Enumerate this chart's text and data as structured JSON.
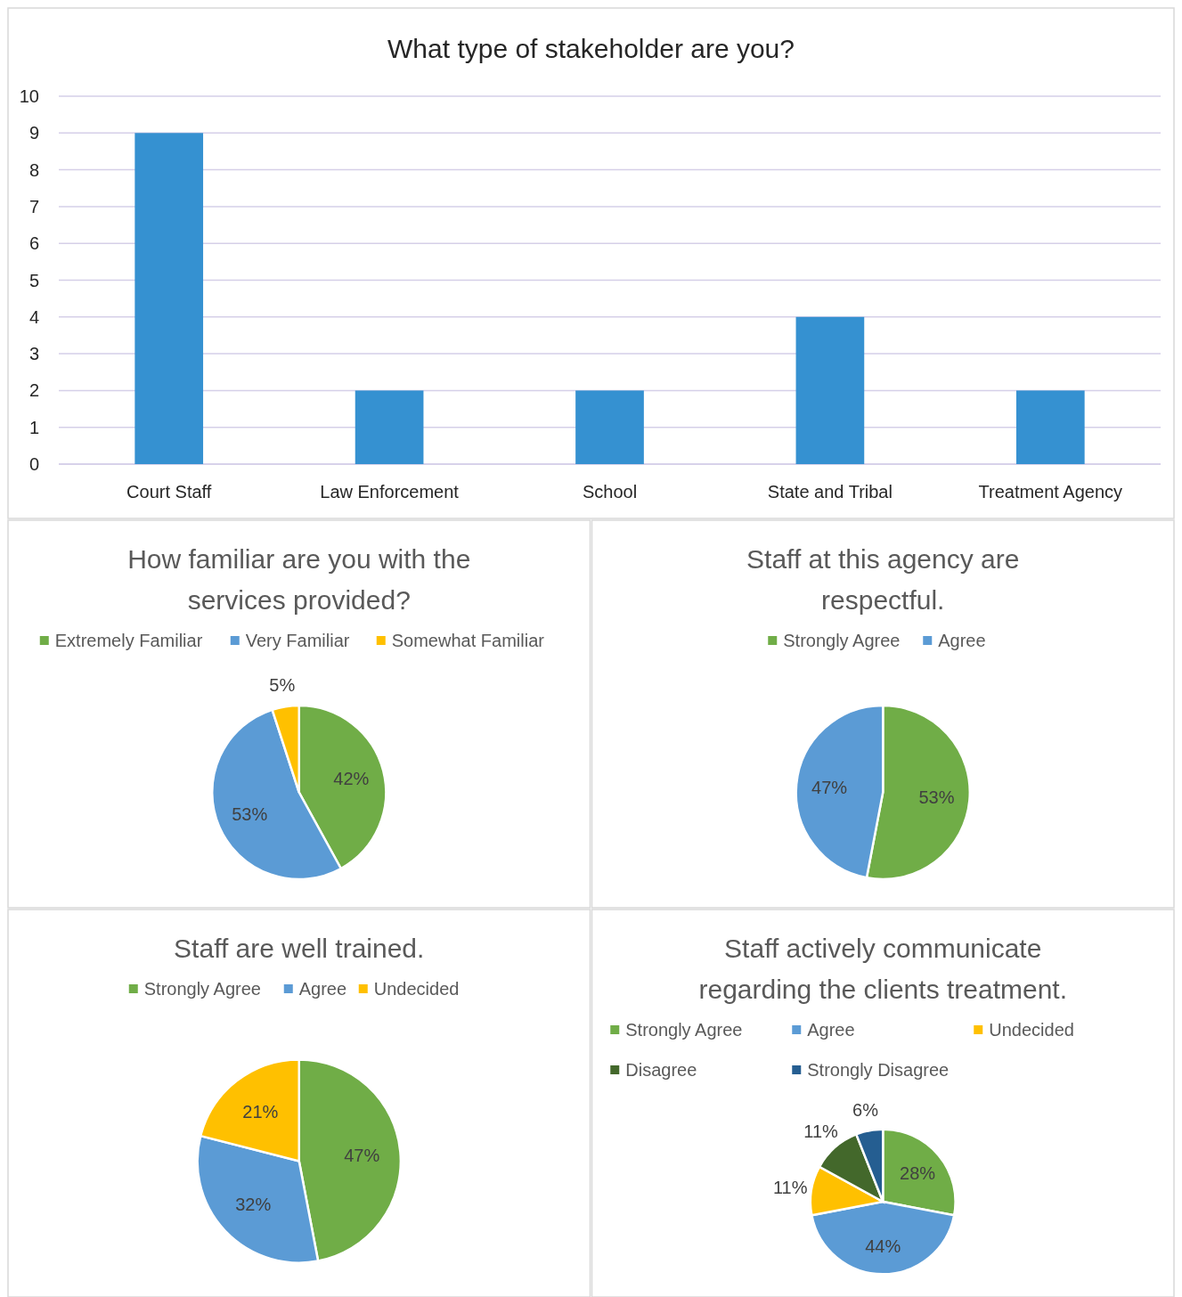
{
  "chart_data": [
    {
      "type": "bar",
      "title": "What type of stakeholder are you?",
      "categories": [
        "Court Staff",
        "Law Enforcement",
        "School",
        "State and Tribal",
        "Treatment Agency"
      ],
      "values": [
        9,
        2,
        2,
        4,
        2
      ],
      "color": "#3591d1",
      "ylim": [
        0,
        10
      ],
      "yticks": [
        0,
        1,
        2,
        3,
        4,
        5,
        6,
        7,
        8,
        9,
        10
      ],
      "grid": "y"
    },
    {
      "type": "pie",
      "title": "How familiar are you with the services provided?",
      "categories": [
        "Extremely Familiar",
        "Very Familiar",
        "Somewhat Familiar"
      ],
      "values": [
        42,
        53,
        5
      ],
      "colors": [
        "#70ad47",
        "#5b9bd5",
        "#ffc000"
      ],
      "value_labels": [
        "42%",
        "53%",
        "5%"
      ],
      "legend": "top"
    },
    {
      "type": "pie",
      "title": "Staff at this agency are respectful.",
      "categories": [
        "Strongly Agree",
        "Agree"
      ],
      "values": [
        53,
        47
      ],
      "colors": [
        "#70ad47",
        "#5b9bd5"
      ],
      "value_labels": [
        "53%",
        "47%"
      ],
      "legend": "top"
    },
    {
      "type": "pie",
      "title": "Staff are well trained.",
      "categories": [
        "Strongly Agree",
        "Agree",
        "Undecided"
      ],
      "values": [
        47,
        32,
        21
      ],
      "colors": [
        "#70ad47",
        "#5b9bd5",
        "#ffc000"
      ],
      "value_labels": [
        "47%",
        "32%",
        "21%"
      ],
      "legend": "top"
    },
    {
      "type": "pie",
      "title": "Staff actively communicate regarding the clients treatment.",
      "categories": [
        "Strongly Agree",
        "Agree",
        "Undecided",
        "Disagree",
        "Strongly Disagree"
      ],
      "values": [
        28,
        44,
        11,
        11,
        6
      ],
      "colors": [
        "#70ad47",
        "#5b9bd5",
        "#ffc000",
        "#43682b",
        "#255e91"
      ],
      "value_labels": [
        "28%",
        "44%",
        "11%",
        "11%",
        "6%"
      ],
      "legend": "top"
    }
  ]
}
